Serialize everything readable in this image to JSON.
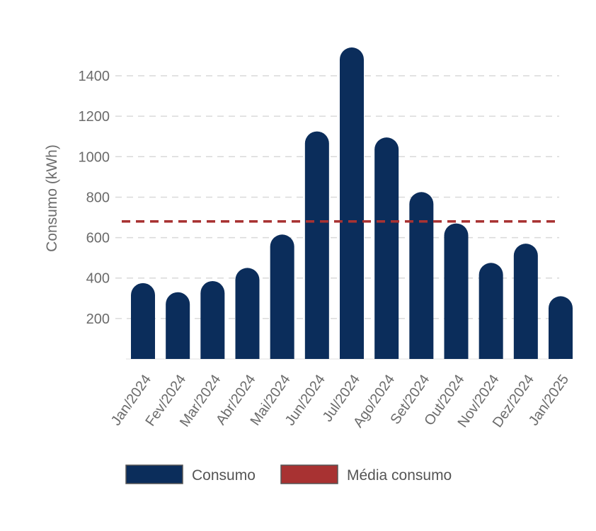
{
  "chart_data": {
    "type": "bar",
    "categories": [
      "Jan/2024",
      "Fev/2024",
      "Mar/2024",
      "Abr/2024",
      "Mai/2024",
      "Jun/2024",
      "Jul/2024",
      "Ago/2024",
      "Set/2024",
      "Out/2024",
      "Nov/2024",
      "Dez/2024",
      "Jan/2025"
    ],
    "series": [
      {
        "name": "Consumo",
        "color": "#0b2d5b",
        "values": [
          375,
          330,
          385,
          450,
          615,
          1125,
          1540,
          1095,
          825,
          670,
          475,
          570,
          310
        ]
      }
    ],
    "reference_line": {
      "name": "Média consumo",
      "value": 680,
      "color": "#a83232",
      "style": "dashed"
    },
    "ylabel": "Consumo (kWh)",
    "xlabel": "",
    "ylim": [
      0,
      1540
    ],
    "yticks": [
      200,
      400,
      600,
      800,
      1000,
      1200,
      1400
    ],
    "grid": true,
    "legend": {
      "position": "bottom",
      "items": [
        "Consumo",
        "Média consumo"
      ]
    }
  }
}
